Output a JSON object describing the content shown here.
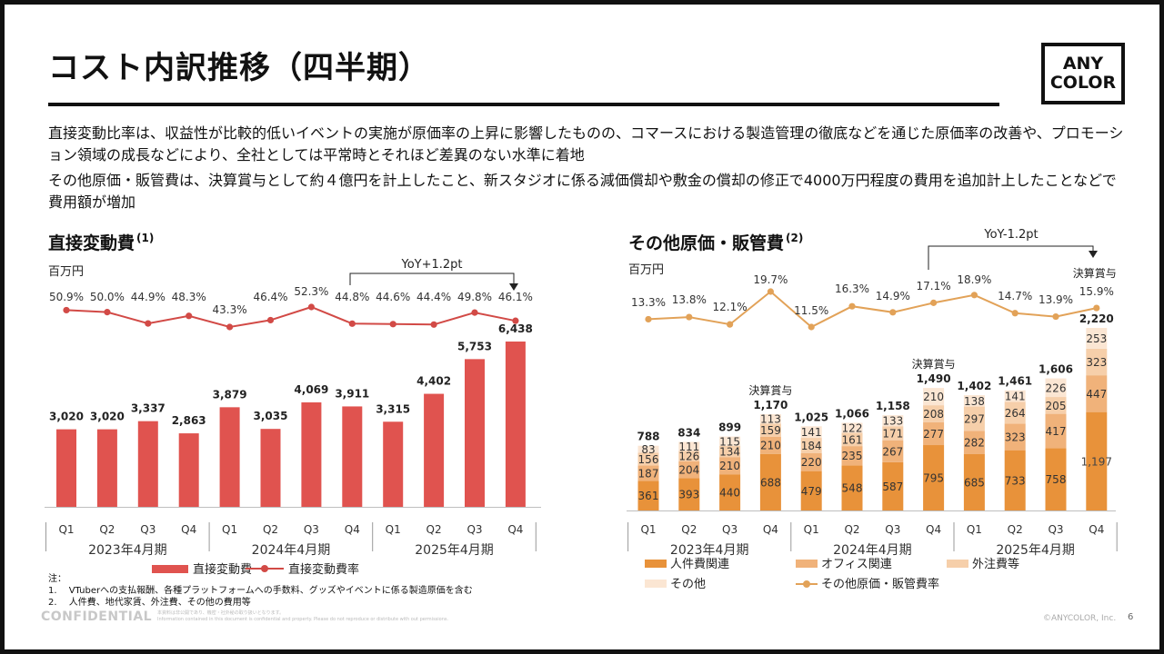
{
  "header": {
    "title": "コスト内訳推移（四半期）",
    "logo_line1": "ANY",
    "logo_line2": "COLOR"
  },
  "paragraphs": [
    "直接変動比率は、収益性が比較的低いイベントの実施が原価率の上昇に影響したものの、コマースにおける製造管理の徹底などを通じた原価率の改善や、プロモーション領域の成長などにより、全社としては平常時とそれほど差異のない水準に着地",
    "その他原価・販管費は、決算賞与として約４億円を計上したこと、新スタジオに係る減価償却や敷金の償却の修正で4000万円程度の費用を追加計上したことなどで費用額が増加"
  ],
  "footer": {
    "notes_label": "注：",
    "note1": "1.　 VTuberへの支払報酬、各種プラットフォームへの手数料、グッズやイベントに係る製造原価を含む",
    "note2": "2.　 人件費、地代家賃、外注費、その他の費用等",
    "confidential": "CONFIDENTIAL",
    "disclaimer1": "本資料は非公開であり、機密・社外秘の取り扱いとなります。",
    "disclaimer2": "Information contained in this document is confidential and property. Please do not reproduce or distribute with out permissions.",
    "copyright": "©ANYCOLOR, Inc.",
    "page": "6"
  },
  "colors": {
    "bar_red": "#e0534f",
    "line_red": "#d24a46",
    "personnel": "#e8923a",
    "office": "#f0b27a",
    "outsourcing": "#f6cfaa",
    "other": "#fbe6d3",
    "ratio_line": "#e2a258"
  },
  "chart_data": [
    {
      "type": "bar",
      "title": "直接変動費",
      "title_note": "(1)",
      "unit": "百万円",
      "categories": [
        "Q1",
        "Q2",
        "Q3",
        "Q4",
        "Q1",
        "Q2",
        "Q3",
        "Q4",
        "Q1",
        "Q2",
        "Q3",
        "Q4"
      ],
      "year_groups": [
        "2023年4月期",
        "2024年4月期",
        "2025年4月期"
      ],
      "values": [
        3020,
        3020,
        3337,
        2863,
        3879,
        3035,
        4069,
        3911,
        3315,
        4402,
        5753,
        6438
      ],
      "value_labels": [
        "3,020",
        "3,020",
        "3,337",
        "2,863",
        "3,879",
        "3,035",
        "4,069",
        "3,911",
        "3,315",
        "4,402",
        "5,753",
        "6,438"
      ],
      "ratio": [
        50.9,
        50.0,
        44.9,
        48.3,
        43.3,
        46.4,
        52.3,
        44.8,
        44.6,
        44.4,
        49.8,
        46.1
      ],
      "ratio_labels": [
        "50.9%",
        "50.0%",
        "44.9%",
        "48.3%",
        "43.3%",
        "46.4%",
        "52.3%",
        "44.8%",
        "44.6%",
        "44.4%",
        "49.8%",
        "46.1%"
      ],
      "yoy_label": "YoY+1.2pt",
      "legend": [
        "直接変動費",
        "直接変動費率"
      ]
    },
    {
      "type": "bar",
      "title": "その他原価・販管費",
      "title_note": "(2)",
      "unit": "百万円",
      "categories": [
        "Q1",
        "Q2",
        "Q3",
        "Q4",
        "Q1",
        "Q2",
        "Q3",
        "Q4",
        "Q1",
        "Q2",
        "Q3",
        "Q4"
      ],
      "year_groups": [
        "2023年4月期",
        "2024年4月期",
        "2025年4月期"
      ],
      "stacked": true,
      "series": [
        {
          "name": "人件費関連",
          "values": [
            361,
            393,
            440,
            688,
            479,
            548,
            587,
            795,
            685,
            733,
            758,
            1197
          ],
          "labels": [
            "361",
            "393",
            "440",
            "688",
            "479",
            "548",
            "587",
            "795",
            "685",
            "733",
            "758",
            "1,197"
          ]
        },
        {
          "name": "オフィス関連",
          "values": [
            187,
            204,
            210,
            210,
            220,
            235,
            267,
            277,
            282,
            323,
            417,
            447
          ],
          "labels": [
            "187",
            "204",
            "210",
            "210",
            "220",
            "235",
            "267",
            "277",
            "282",
            "323",
            "417",
            "447"
          ]
        },
        {
          "name": "外注費等",
          "values": [
            156,
            126,
            134,
            159,
            184,
            161,
            171,
            208,
            297,
            264,
            205,
            323
          ],
          "labels": [
            "156",
            "126",
            "134",
            "159",
            "184",
            "161",
            "171",
            "208",
            "297",
            "264",
            "205",
            "323"
          ]
        },
        {
          "name": "その他",
          "values": [
            83,
            111,
            115,
            113,
            141,
            122,
            133,
            210,
            138,
            141,
            226,
            253
          ],
          "labels": [
            "83",
            "111",
            "115",
            "113",
            "141",
            "122",
            "133",
            "210",
            "138",
            "141",
            "226",
            "253"
          ]
        }
      ],
      "totals": [
        788,
        834,
        899,
        1170,
        1025,
        1066,
        1158,
        1490,
        1402,
        1461,
        1606,
        2220
      ],
      "total_labels": [
        "788",
        "834",
        "899",
        "1,170",
        "1,025",
        "1,066",
        "1,158",
        "1,490",
        "1,402",
        "1,461",
        "1,606",
        "2,220"
      ],
      "ratio": [
        13.3,
        13.8,
        12.1,
        19.7,
        11.5,
        16.3,
        14.9,
        17.1,
        18.9,
        14.7,
        13.9,
        15.9
      ],
      "ratio_labels": [
        "13.3%",
        "13.8%",
        "12.1%",
        "19.7%",
        "11.5%",
        "16.3%",
        "14.9%",
        "17.1%",
        "18.9%",
        "14.7%",
        "13.9%",
        "15.9%"
      ],
      "ratio_name": "その他原価・販管費率",
      "bonus_label": "決算賞与",
      "bonus_indices": [
        3,
        7,
        11
      ],
      "yoy_label": "YoY-1.2pt"
    }
  ]
}
